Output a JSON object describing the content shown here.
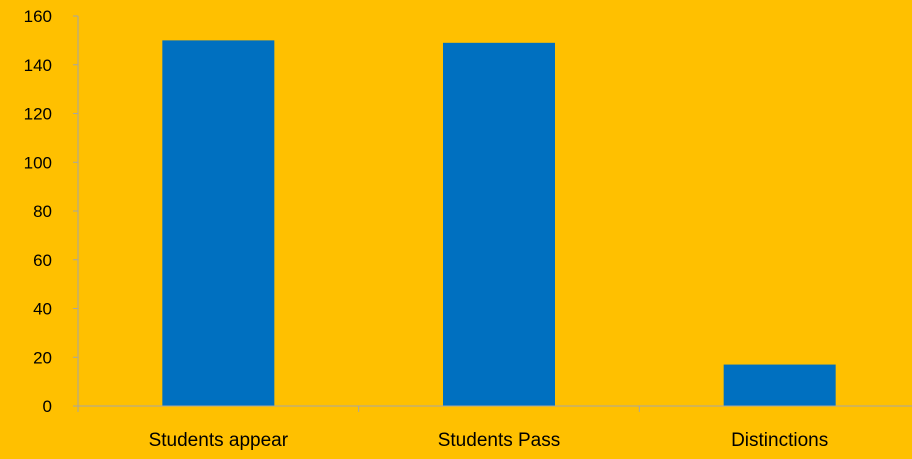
{
  "chart_data": {
    "type": "bar",
    "categories": [
      "Students appear",
      "Students Pass",
      "Distinctions"
    ],
    "values": [
      150,
      149,
      17
    ],
    "title": "",
    "xlabel": "",
    "ylabel": "",
    "ylim": [
      0,
      160
    ],
    "yticks": [
      "0",
      "20",
      "40",
      "60",
      "80",
      "100",
      "120",
      "140",
      "160"
    ],
    "grid": false,
    "legend": "none"
  },
  "colors": {
    "background": "#FFC000",
    "bar": "#0070C0",
    "axis": "#A6A6A6"
  }
}
